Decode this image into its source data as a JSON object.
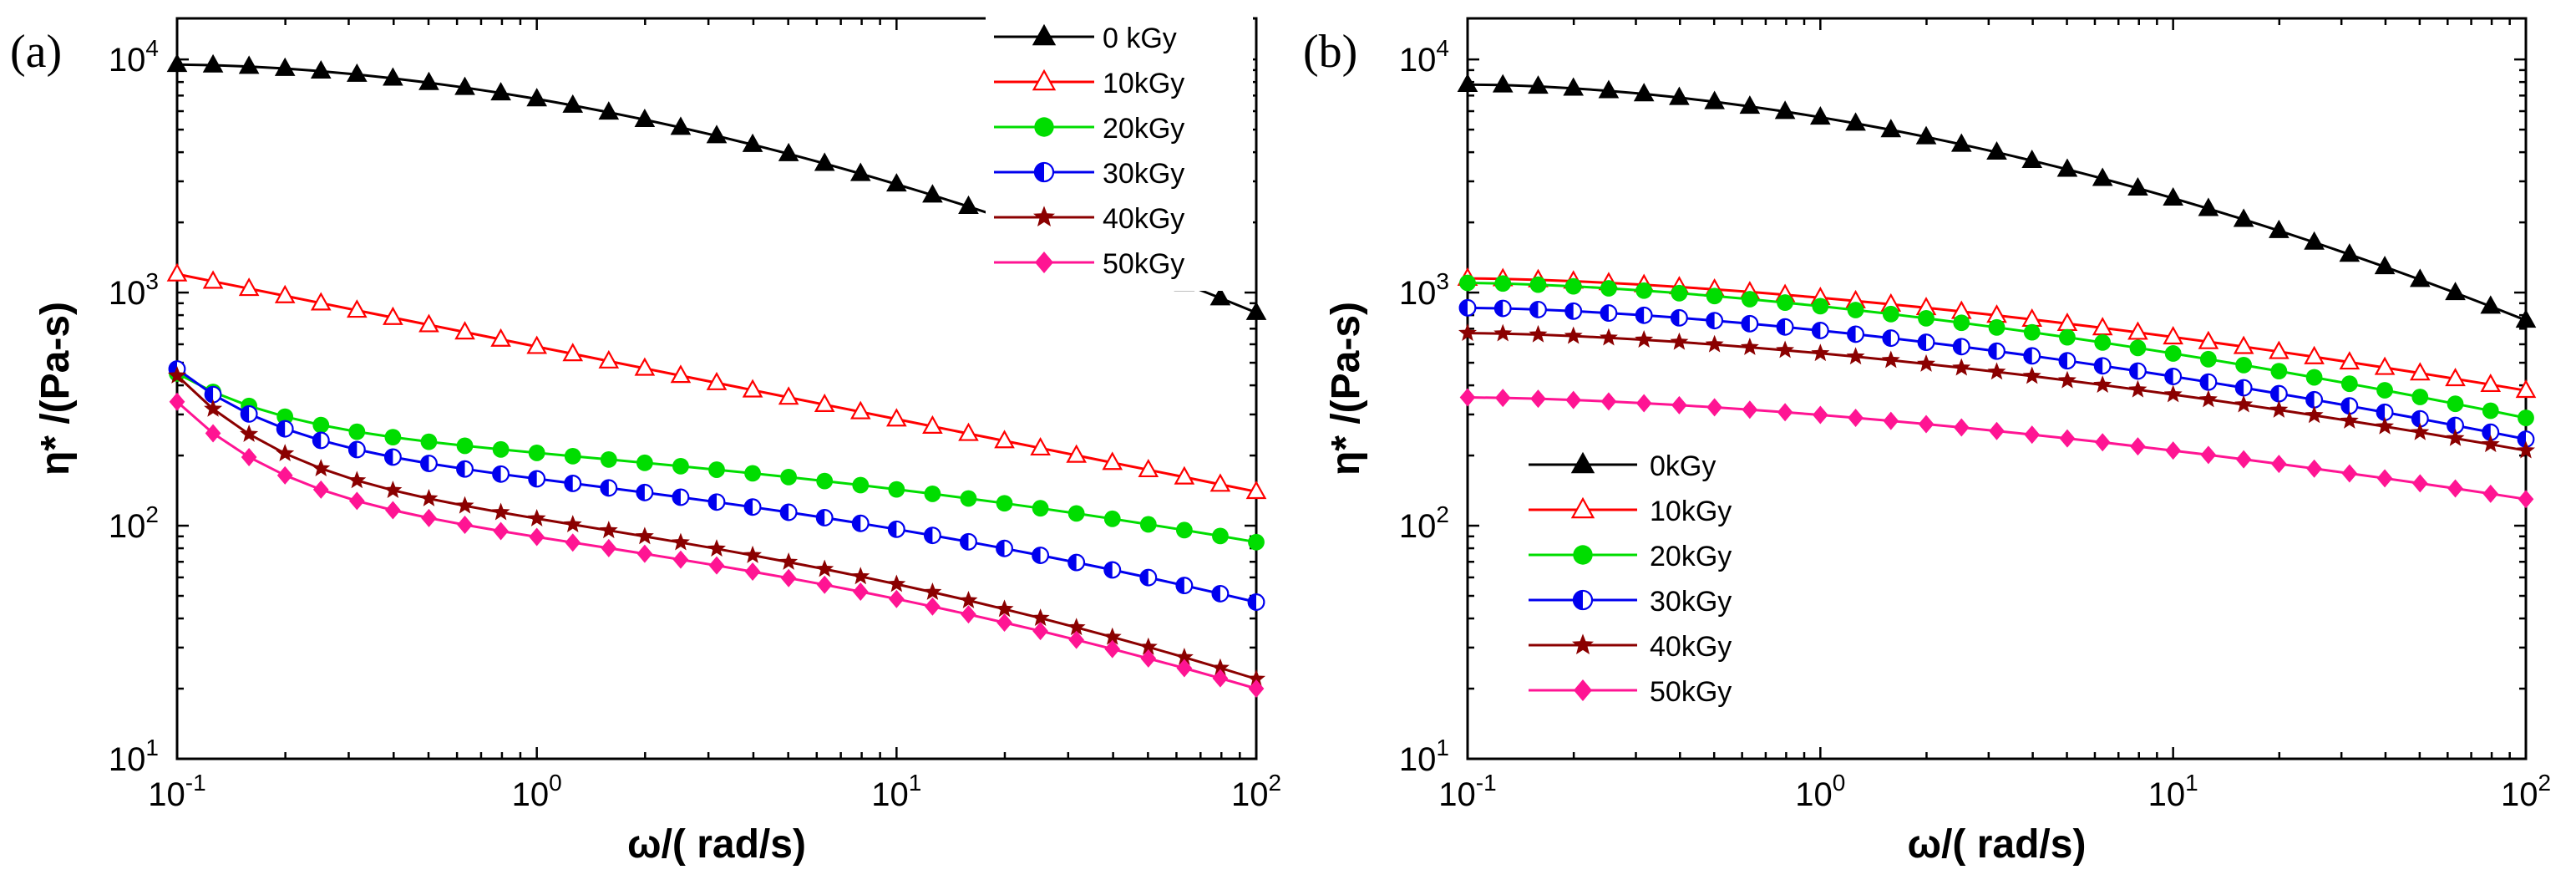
{
  "chart_data": [
    {
      "type": "line",
      "panel": "(a)",
      "xscale": "log",
      "yscale": "log",
      "xlabel": "ω/( rad/s)",
      "ylabel": "η* /(Pa-s)",
      "xlim": [
        0.1,
        100
      ],
      "ylim": [
        10,
        15000
      ],
      "x_ticks": [
        {
          "base": "10",
          "exp": "-1",
          "value": 0.1
        },
        {
          "base": "10",
          "exp": "0",
          "value": 1
        },
        {
          "base": "10",
          "exp": "1",
          "value": 10
        },
        {
          "base": "10",
          "exp": "2",
          "value": 100
        }
      ],
      "y_ticks": [
        {
          "base": "10",
          "exp": "1",
          "value": 10
        },
        {
          "base": "10",
          "exp": "2",
          "value": 100
        },
        {
          "base": "10",
          "exp": "3",
          "value": 1000
        },
        {
          "base": "10",
          "exp": "4",
          "value": 10000
        }
      ],
      "legend_position": "top-right",
      "series": [
        {
          "name": "0 kGy",
          "color": "#000000",
          "marker": "triangle-filled",
          "y0": 9500,
          "y1": 820,
          "shape": "plateau"
        },
        {
          "name": "10kGy",
          "color": "#ff0000",
          "marker": "triangle-open",
          "y0": 1200,
          "y1": 140,
          "shape": "linear"
        },
        {
          "name": "20kGy",
          "color": "#00dd00",
          "marker": "circle-filled",
          "y0": 450,
          "y1": 85,
          "shape": "drop-mid-drop"
        },
        {
          "name": "30kGy",
          "color": "#0000ee",
          "marker": "circle-half",
          "y0": 470,
          "y1": 47,
          "shape": "drop-mid-drop"
        },
        {
          "name": "40kGy",
          "color": "#8b0000",
          "marker": "star",
          "y0": 440,
          "y1": 22,
          "shape": "drop-mid-drop"
        },
        {
          "name": "50kGy",
          "color": "#ff1493",
          "marker": "diamond",
          "y0": 340,
          "y1": 20,
          "shape": "drop-mid-drop"
        }
      ]
    },
    {
      "type": "line",
      "panel": "(b)",
      "xscale": "log",
      "yscale": "log",
      "xlabel": "ω/( rad/s)",
      "ylabel": "η* /(Pa-s)",
      "xlim": [
        0.1,
        100
      ],
      "ylim": [
        10,
        15000
      ],
      "x_ticks": [
        {
          "base": "10",
          "exp": "-1",
          "value": 0.1
        },
        {
          "base": "10",
          "exp": "0",
          "value": 1
        },
        {
          "base": "10",
          "exp": "1",
          "value": 10
        },
        {
          "base": "10",
          "exp": "2",
          "value": 100
        }
      ],
      "y_ticks": [
        {
          "base": "10",
          "exp": "1",
          "value": 10
        },
        {
          "base": "10",
          "exp": "2",
          "value": 100
        },
        {
          "base": "10",
          "exp": "3",
          "value": 1000
        },
        {
          "base": "10",
          "exp": "4",
          "value": 10000
        }
      ],
      "legend_position": "center-left",
      "series": [
        {
          "name": "0kGy",
          "color": "#000000",
          "marker": "triangle-filled",
          "y0": 7800,
          "y1": 760,
          "shape": "plateau"
        },
        {
          "name": "10kGy",
          "color": "#ff0000",
          "marker": "triangle-open",
          "y0": 1150,
          "y1": 380,
          "shape": "plateau-mild"
        },
        {
          "name": "20kGy",
          "color": "#00dd00",
          "marker": "circle-filled",
          "y0": 1100,
          "y1": 290,
          "shape": "plateau-mild"
        },
        {
          "name": "30kGy",
          "color": "#0000ee",
          "marker": "circle-half",
          "y0": 860,
          "y1": 235,
          "shape": "plateau-mild"
        },
        {
          "name": "40kGy",
          "color": "#8b0000",
          "marker": "star",
          "y0": 670,
          "y1": 210,
          "shape": "plateau-mild"
        },
        {
          "name": "50kGy",
          "color": "#ff1493",
          "marker": "diamond",
          "y0": 355,
          "y1": 130,
          "shape": "plateau-mild"
        }
      ]
    }
  ]
}
